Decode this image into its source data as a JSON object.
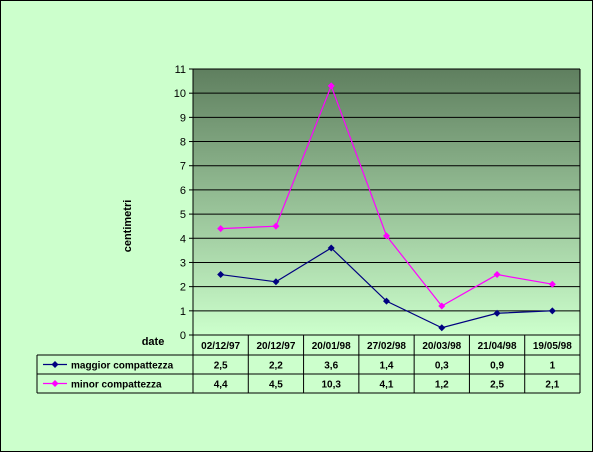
{
  "chart_data": {
    "type": "line",
    "ylabel": "centimetri",
    "xlabel": "date",
    "ylim": [
      0,
      11
    ],
    "ytick_step": 1,
    "grid": true,
    "legend": "data-table-left",
    "categories": [
      "02/12/97",
      "20/12/97",
      "20/01/98",
      "27/02/98",
      "20/03/98",
      "21/04/98",
      "19/05/98"
    ],
    "series": [
      {
        "name": "maggior compattezza",
        "color": "#000080",
        "marker": "diamond",
        "values": [
          2.5,
          2.2,
          3.6,
          1.4,
          0.3,
          0.9,
          1
        ],
        "labels": [
          "2,5",
          "2,2",
          "3,6",
          "1,4",
          "0,3",
          "0,9",
          "1"
        ]
      },
      {
        "name": "minor compattezza",
        "color": "#FF00FF",
        "marker": "diamond",
        "values": [
          4.4,
          4.5,
          10.3,
          4.1,
          1.2,
          2.5,
          2.1
        ],
        "labels": [
          "4,4",
          "4,5",
          "10,3",
          "4,1",
          "1,2",
          "2,5",
          "2,1"
        ]
      }
    ],
    "colors": {
      "background": "#CCFFCC",
      "plot_top": "#5F7F5F",
      "plot_bottom": "#CCFFCC",
      "gridline": "#000000"
    }
  }
}
